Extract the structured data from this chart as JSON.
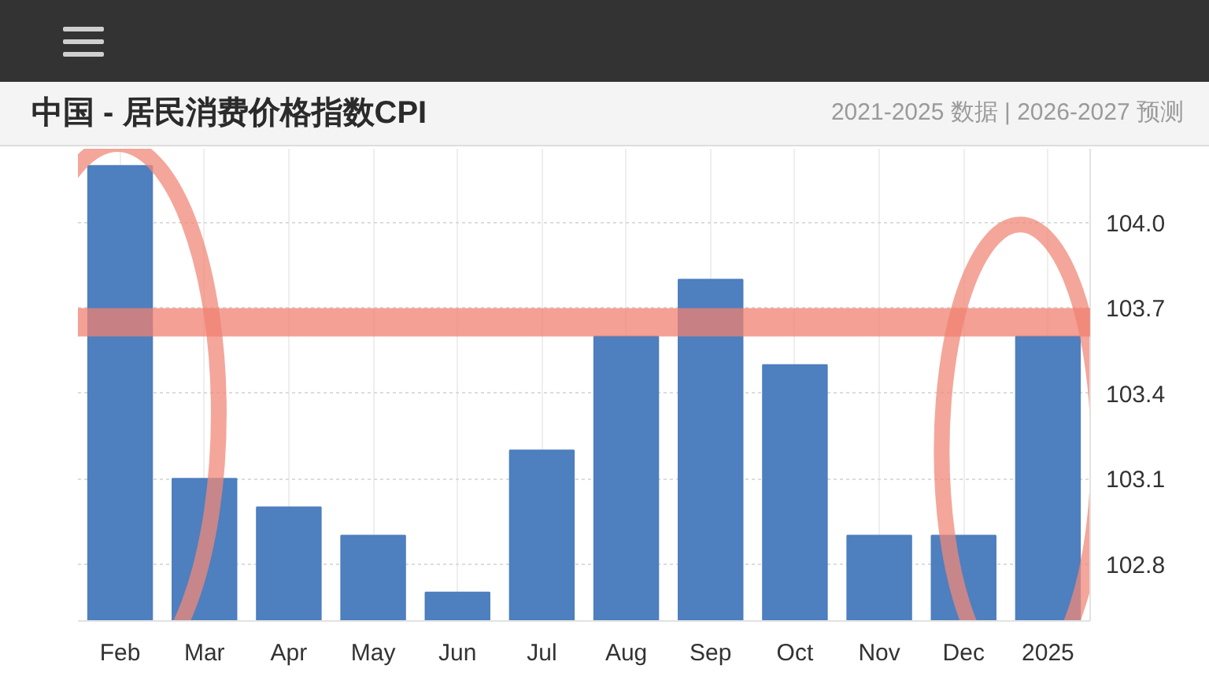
{
  "chart_data": {
    "type": "bar",
    "title": "中国 - 居民消费价格指数CPI",
    "subtitle": "2021-2025 数据 | 2026-2027 预测",
    "categories": [
      "Feb",
      "Mar",
      "Apr",
      "May",
      "Jun",
      "Jul",
      "Aug",
      "Sep",
      "Oct",
      "Nov",
      "Dec",
      "2025"
    ],
    "values": [
      104.2,
      103.1,
      103.0,
      102.9,
      102.7,
      103.2,
      103.6,
      103.8,
      103.5,
      102.9,
      102.9,
      103.6
    ],
    "color": "#4e7fbf",
    "ylim": [
      102.6,
      104.26
    ],
    "yticks": [
      102.8,
      103.1,
      103.4,
      103.7,
      {
        "value": 104,
        "label": "104.0"
      }
    ],
    "grid": true,
    "bands": [
      {
        "axis": "y",
        "from": 103.6,
        "to": 103.7,
        "color": "#f08070"
      }
    ]
  }
}
